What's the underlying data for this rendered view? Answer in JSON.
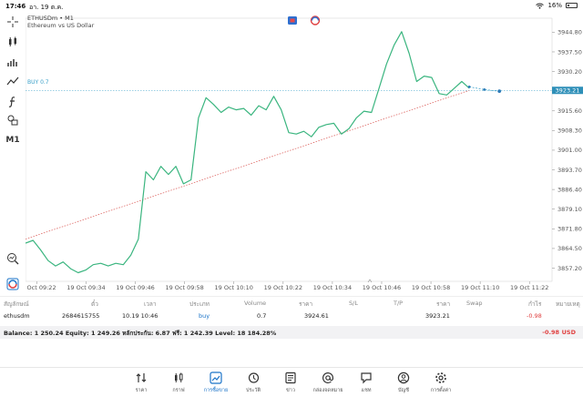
{
  "status": {
    "time": "17:46",
    "date": "อา. 19 ต.ค.",
    "battery": "16%",
    "battery_level": 0.16
  },
  "chart": {
    "symbol": "ETHUSDm • M1",
    "subtitle": "Ethereum vs US Dollar",
    "buy_label": "BUY 0.7",
    "current_price_label": "3923.21",
    "timeframe_button": "M1"
  },
  "chart_data": {
    "type": "line",
    "y_ticks": [
      "3944.80",
      "3937.50",
      "3930.20",
      "3922.90",
      "3915.60",
      "3908.30",
      "3901.00",
      "3893.70",
      "3886.40",
      "3879.10",
      "3871.80",
      "3864.50",
      "3857.20"
    ],
    "x_ticks": [
      "19 Oct 09:22",
      "19 Oct 09:34",
      "19 Oct 09:46",
      "19 Oct 09:58",
      "19 Oct 10:10",
      "19 Oct 10:22",
      "19 Oct 10:34",
      "19 Oct 10:46",
      "19 Oct 10:58",
      "19 Oct 11:10",
      "19 Oct 11:22"
    ],
    "ylim": [
      3852.3,
      3950.0
    ],
    "xlim": [
      0,
      140
    ],
    "series": [
      {
        "x": [
          0,
          2,
          4,
          6,
          8,
          10,
          12,
          14,
          16,
          18,
          20,
          22,
          24,
          26,
          28,
          30,
          32,
          34,
          36,
          38,
          40,
          42,
          44,
          46,
          48,
          50,
          52,
          54,
          56,
          58,
          60,
          62,
          64,
          66,
          68,
          70,
          72,
          74,
          76,
          78,
          80,
          82,
          84,
          86,
          88,
          90,
          92,
          94,
          96,
          98,
          100,
          102,
          104,
          106,
          108,
          110,
          112,
          114,
          116,
          118
        ],
        "y": [
          3866.5,
          3867.5,
          3864.0,
          3860.0,
          3858.0,
          3859.5,
          3857.0,
          3855.5,
          3856.5,
          3858.5,
          3859.0,
          3858.0,
          3859.0,
          3858.5,
          3862.0,
          3868.0,
          3893.0,
          3890.0,
          3895.0,
          3892.0,
          3895.0,
          3888.5,
          3890.0,
          3913.0,
          3920.5,
          3918.0,
          3915.0,
          3917.0,
          3916.0,
          3916.5,
          3914.0,
          3917.5,
          3916.0,
          3921.0,
          3916.0,
          3907.5,
          3907.0,
          3908.0,
          3906.0,
          3909.5,
          3910.5,
          3911.0,
          3907.0,
          3909.0,
          3913.0,
          3915.5,
          3915.0,
          3924.0,
          3933.0,
          3940.0,
          3945.0,
          3937.0,
          3926.5,
          3928.5,
          3928.0,
          3922.0,
          3921.5,
          3924.0,
          3926.5,
          3924.0
        ]
      },
      {
        "x": [
          118,
          122,
          126
        ],
        "y": [
          3924.5,
          3923.5,
          3922.9
        ]
      }
    ],
    "trendline": {
      "x": [
        0,
        118
      ],
      "y": [
        3868.0,
        3923.2
      ]
    },
    "buy_level": 3923.21
  },
  "table": {
    "headers": [
      "สัญลักษณ์",
      "ตั๋ว",
      "เวลา",
      "ประเภท",
      "Volume",
      "ราคา",
      "S/L",
      "T/P",
      "ราคา",
      "Swap",
      "กำไร",
      "หมายเหตุ"
    ],
    "row": {
      "symbol": "ethusdm",
      "ticket": "2684615755",
      "time": "10.19 10:46",
      "type": "buy",
      "volume": "0.7",
      "price": "3924.61",
      "current_price": "3923.21",
      "profit": "-0.98"
    }
  },
  "balance": {
    "text": "Balance: 1 250.24 Equity: 1 249.26 หลักประกัน: 6.87 ฟรี: 1 242.39 Level: 18 184.28%",
    "profit": "-0.98",
    "currency": "USD"
  },
  "nav": [
    {
      "label": "ราคา",
      "icon": "quotes-icon"
    },
    {
      "label": "กราฟ",
      "icon": "candles-icon"
    },
    {
      "label": "การซื้อขาย",
      "icon": "trade-icon"
    },
    {
      "label": "ประวัติ",
      "icon": "history-icon"
    },
    {
      "label": "ข่าว",
      "icon": "news-icon"
    },
    {
      "label": "กล่องจดหมาย",
      "icon": "mail-icon"
    },
    {
      "label": "แชท",
      "icon": "chat-icon"
    },
    {
      "label": "บัญชี",
      "icon": "account-icon"
    },
    {
      "label": "การตั้งค่า",
      "icon": "settings-icon"
    }
  ],
  "colors": {
    "line": "#3ab57f",
    "trendline": "#d9534f",
    "buy": "#3aa0c8",
    "loss": "#e04040",
    "active_nav": "#1a73c8"
  }
}
